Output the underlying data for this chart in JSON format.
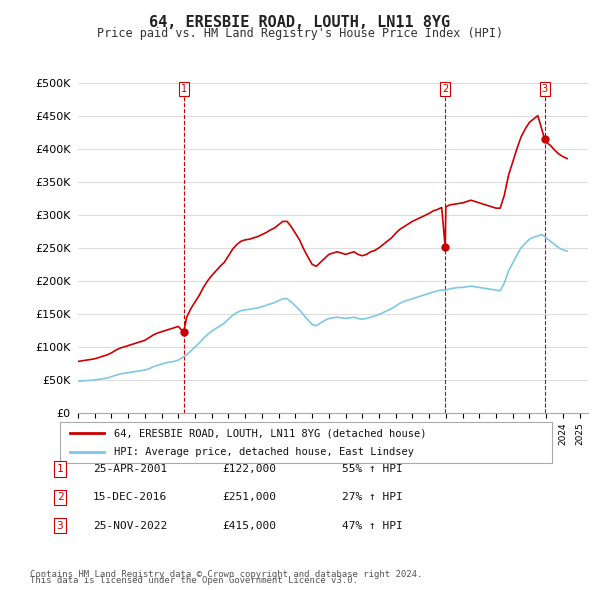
{
  "title": "64, ERESBIE ROAD, LOUTH, LN11 8YG",
  "subtitle": "Price paid vs. HM Land Registry's House Price Index (HPI)",
  "ylabel_ticks": [
    "£0",
    "£50K",
    "£100K",
    "£150K",
    "£200K",
    "£250K",
    "£300K",
    "£350K",
    "£400K",
    "£450K",
    "£500K"
  ],
  "ytick_values": [
    0,
    50000,
    100000,
    150000,
    200000,
    250000,
    300000,
    350000,
    400000,
    450000,
    500000
  ],
  "ylim": [
    0,
    500000
  ],
  "xlim_start": 1995.0,
  "xlim_end": 2025.5,
  "red_line_color": "#cc0000",
  "blue_line_color": "#7ec8e3",
  "dashed_line_color": "#cc0000",
  "legend_label_red": "64, ERESBIE ROAD, LOUTH, LN11 8YG (detached house)",
  "legend_label_blue": "HPI: Average price, detached house, East Lindsey",
  "transactions": [
    {
      "num": 1,
      "date": "25-APR-2001",
      "price": 122000,
      "pct": "55%",
      "x_year": 2001.32
    },
    {
      "num": 2,
      "date": "15-DEC-2016",
      "price": 251000,
      "pct": "27%",
      "x_year": 2016.96
    },
    {
      "num": 3,
      "date": "25-NOV-2022",
      "price": 415000,
      "pct": "47%",
      "x_year": 2022.9
    }
  ],
  "footer_line1": "Contains HM Land Registry data © Crown copyright and database right 2024.",
  "footer_line2": "This data is licensed under the Open Government Licence v3.0.",
  "background_color": "#ffffff",
  "grid_color": "#dddddd",
  "hpi_red": {
    "x": [
      1995.0,
      1995.25,
      1995.5,
      1995.75,
      1996.0,
      1996.25,
      1996.5,
      1996.75,
      1997.0,
      1997.25,
      1997.5,
      1997.75,
      1998.0,
      1998.25,
      1998.5,
      1998.75,
      1999.0,
      1999.25,
      1999.5,
      1999.75,
      2000.0,
      2000.25,
      2000.5,
      2000.75,
      2001.0,
      2001.32,
      2001.5,
      2001.75,
      2002.0,
      2002.25,
      2002.5,
      2002.75,
      2003.0,
      2003.25,
      2003.5,
      2003.75,
      2004.0,
      2004.25,
      2004.5,
      2004.75,
      2005.0,
      2005.25,
      2005.5,
      2005.75,
      2006.0,
      2006.25,
      2006.5,
      2006.75,
      2007.0,
      2007.25,
      2007.5,
      2007.75,
      2008.0,
      2008.25,
      2008.5,
      2008.75,
      2009.0,
      2009.25,
      2009.5,
      2009.75,
      2010.0,
      2010.25,
      2010.5,
      2010.75,
      2011.0,
      2011.25,
      2011.5,
      2011.75,
      2012.0,
      2012.25,
      2012.5,
      2012.75,
      2013.0,
      2013.25,
      2013.5,
      2013.75,
      2014.0,
      2014.25,
      2014.5,
      2014.75,
      2015.0,
      2015.25,
      2015.5,
      2015.75,
      2016.0,
      2016.25,
      2016.5,
      2016.75,
      2016.96,
      2017.0,
      2017.25,
      2017.5,
      2017.75,
      2018.0,
      2018.25,
      2018.5,
      2018.75,
      2019.0,
      2019.25,
      2019.5,
      2019.75,
      2020.0,
      2020.25,
      2020.5,
      2020.75,
      2021.0,
      2021.25,
      2021.5,
      2021.75,
      2022.0,
      2022.25,
      2022.5,
      2022.9,
      2023.0,
      2023.25,
      2023.5,
      2023.75,
      2024.0,
      2024.25
    ],
    "y": [
      78000,
      79000,
      80000,
      81000,
      82000,
      84000,
      86000,
      88000,
      91000,
      95000,
      98000,
      100000,
      102000,
      104000,
      106000,
      108000,
      110000,
      114000,
      118000,
      121000,
      123000,
      125000,
      127000,
      129000,
      131000,
      122000,
      145000,
      158000,
      168000,
      178000,
      190000,
      200000,
      208000,
      215000,
      222000,
      228000,
      238000,
      248000,
      255000,
      260000,
      262000,
      263000,
      265000,
      267000,
      270000,
      273000,
      277000,
      280000,
      285000,
      290000,
      290000,
      282000,
      272000,
      262000,
      248000,
      236000,
      225000,
      222000,
      228000,
      234000,
      240000,
      242000,
      244000,
      242000,
      240000,
      242000,
      244000,
      240000,
      238000,
      240000,
      244000,
      246000,
      250000,
      255000,
      260000,
      265000,
      272000,
      278000,
      282000,
      286000,
      290000,
      293000,
      296000,
      299000,
      302000,
      306000,
      308000,
      311000,
      251000,
      312000,
      315000,
      316000,
      317000,
      318000,
      320000,
      322000,
      320000,
      318000,
      316000,
      314000,
      312000,
      310000,
      310000,
      330000,
      360000,
      380000,
      400000,
      418000,
      430000,
      440000,
      445000,
      450000,
      415000,
      410000,
      405000,
      398000,
      392000,
      388000,
      385000
    ]
  },
  "hpi_blue": {
    "x": [
      1995.0,
      1995.25,
      1995.5,
      1995.75,
      1996.0,
      1996.25,
      1996.5,
      1996.75,
      1997.0,
      1997.25,
      1997.5,
      1997.75,
      1998.0,
      1998.25,
      1998.5,
      1998.75,
      1999.0,
      1999.25,
      1999.5,
      1999.75,
      2000.0,
      2000.25,
      2000.5,
      2000.75,
      2001.0,
      2001.5,
      2001.75,
      2002.0,
      2002.25,
      2002.5,
      2002.75,
      2003.0,
      2003.25,
      2003.5,
      2003.75,
      2004.0,
      2004.25,
      2004.5,
      2004.75,
      2005.0,
      2005.25,
      2005.5,
      2005.75,
      2006.0,
      2006.25,
      2006.5,
      2006.75,
      2007.0,
      2007.25,
      2007.5,
      2007.75,
      2008.0,
      2008.25,
      2008.5,
      2008.75,
      2009.0,
      2009.25,
      2009.5,
      2009.75,
      2010.0,
      2010.25,
      2010.5,
      2010.75,
      2011.0,
      2011.25,
      2011.5,
      2011.75,
      2012.0,
      2012.25,
      2012.5,
      2012.75,
      2013.0,
      2013.25,
      2013.5,
      2013.75,
      2014.0,
      2014.25,
      2014.5,
      2014.75,
      2015.0,
      2015.25,
      2015.5,
      2015.75,
      2016.0,
      2016.25,
      2016.5,
      2016.75,
      2017.0,
      2017.25,
      2017.5,
      2017.75,
      2018.0,
      2018.25,
      2018.5,
      2018.75,
      2019.0,
      2019.25,
      2019.5,
      2019.75,
      2020.0,
      2020.25,
      2020.5,
      2020.75,
      2021.0,
      2021.25,
      2021.5,
      2021.75,
      2022.0,
      2022.25,
      2022.5,
      2022.75,
      2023.0,
      2023.25,
      2023.5,
      2023.75,
      2024.0,
      2024.25
    ],
    "y": [
      48000,
      48500,
      49000,
      49500,
      50000,
      51000,
      52000,
      53000,
      55000,
      57000,
      59000,
      60000,
      61000,
      62000,
      63000,
      64000,
      65000,
      67000,
      70000,
      72000,
      74000,
      76000,
      77000,
      78000,
      80000,
      88000,
      94000,
      100000,
      106000,
      113000,
      119000,
      124000,
      128000,
      132000,
      136000,
      142000,
      148000,
      152000,
      155000,
      156000,
      157000,
      158000,
      159000,
      161000,
      163000,
      165000,
      167000,
      170000,
      173000,
      173000,
      168000,
      162000,
      156000,
      148000,
      141000,
      134000,
      132000,
      136000,
      140000,
      143000,
      144000,
      145000,
      144000,
      143000,
      144000,
      145000,
      143000,
      142000,
      143000,
      145000,
      147000,
      149000,
      152000,
      155000,
      158000,
      162000,
      166000,
      169000,
      171000,
      173000,
      175000,
      177000,
      179000,
      181000,
      183000,
      185000,
      186000,
      186000,
      188000,
      189000,
      190000,
      190000,
      191000,
      192000,
      191000,
      190000,
      189000,
      188000,
      187000,
      186000,
      185000,
      197000,
      215000,
      227000,
      239000,
      250000,
      257000,
      263000,
      266000,
      268000,
      270000,
      265000,
      260000,
      255000,
      250000,
      247000,
      245000
    ]
  }
}
